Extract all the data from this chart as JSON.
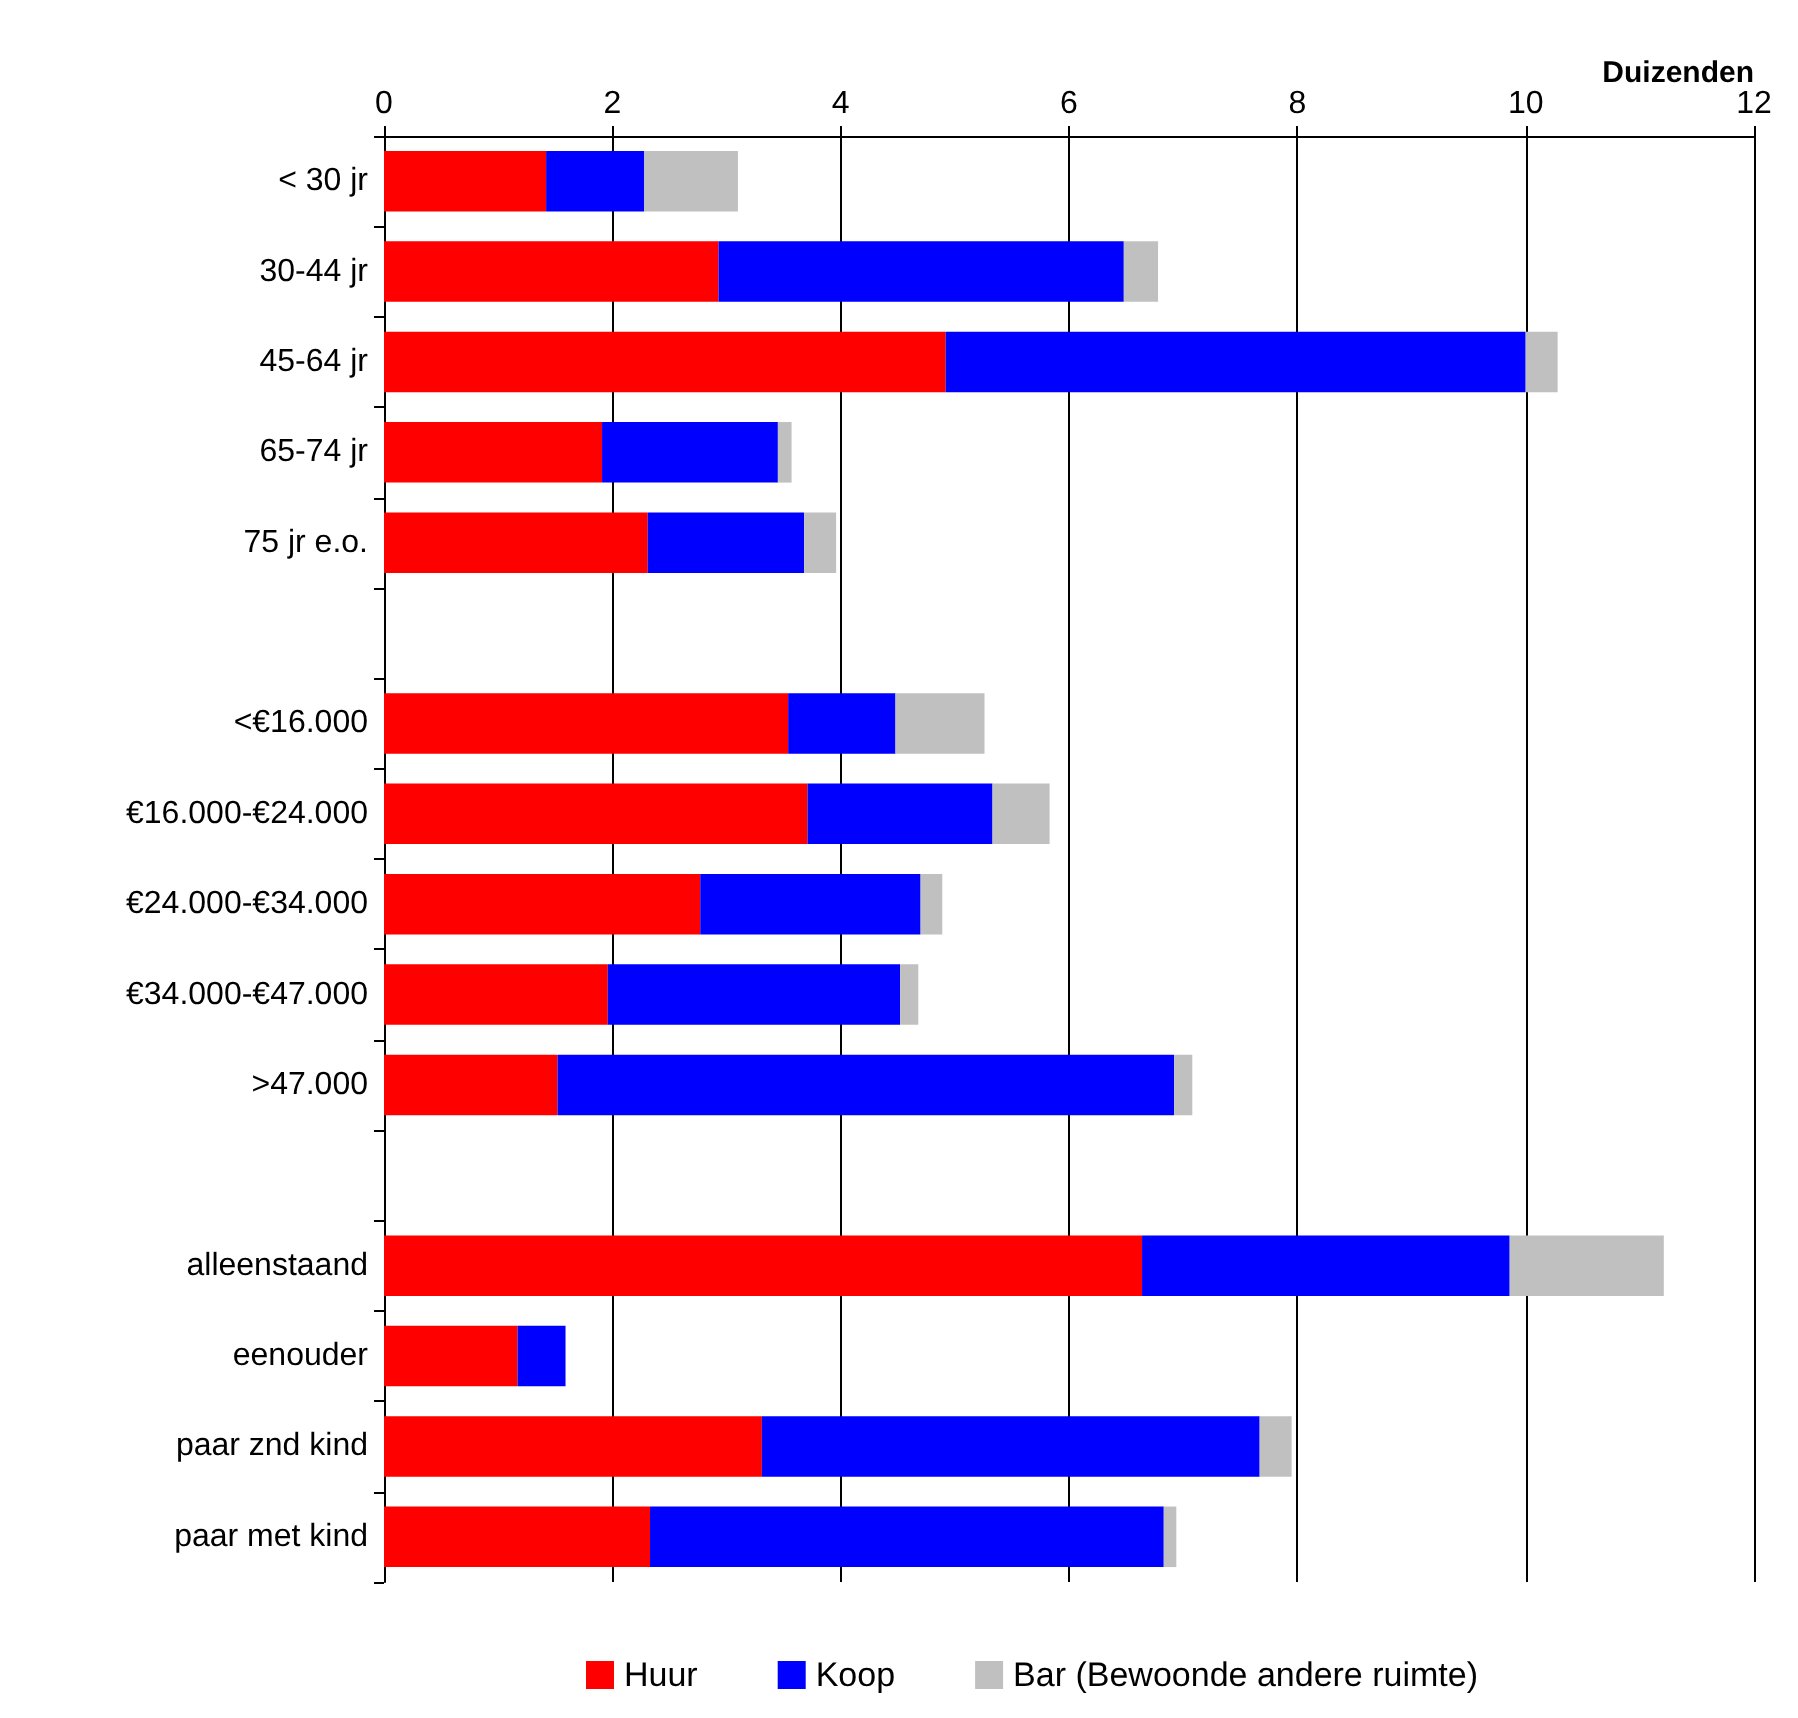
{
  "chart_data": {
    "type": "bar",
    "orientation": "horizontal",
    "stacked": true,
    "xlabel": "Duizenden",
    "categories": [
      "< 30 jr",
      "30-44 jr",
      "45-64 jr",
      "65-74 jr",
      "75 jr e.o.",
      null,
      "<€16.000",
      "€16.000-€24.000",
      "€24.000-€34.000",
      "€34.000-€47.000",
      ">47.000",
      null,
      "alleenstaand",
      "eenouder",
      "paar znd kind",
      "paar met kind"
    ],
    "series": [
      {
        "name": "Huur",
        "color": "#ff0000",
        "values": [
          1.42,
          2.93,
          4.92,
          1.91,
          2.31,
          null,
          3.54,
          3.71,
          2.77,
          1.96,
          1.52,
          null,
          6.64,
          1.17,
          3.31,
          2.33
        ]
      },
      {
        "name": "Koop",
        "color": "#0000ff",
        "values": [
          0.86,
          3.55,
          5.08,
          1.54,
          1.37,
          null,
          0.94,
          1.62,
          1.93,
          2.56,
          5.4,
          null,
          3.22,
          0.42,
          4.36,
          4.5
        ]
      },
      {
        "name": "Bar (Bewoonde andere ruimte)",
        "color": "#c0c0c0",
        "values": [
          0.82,
          0.3,
          0.28,
          0.12,
          0.28,
          null,
          0.78,
          0.5,
          0.19,
          0.16,
          0.16,
          null,
          1.35,
          0,
          0.28,
          0.11
        ]
      }
    ],
    "xlim": [
      0,
      12
    ],
    "xticks": [
      0,
      2,
      4,
      6,
      8,
      10,
      12
    ],
    "grid": "x",
    "legend": "bottom"
  }
}
